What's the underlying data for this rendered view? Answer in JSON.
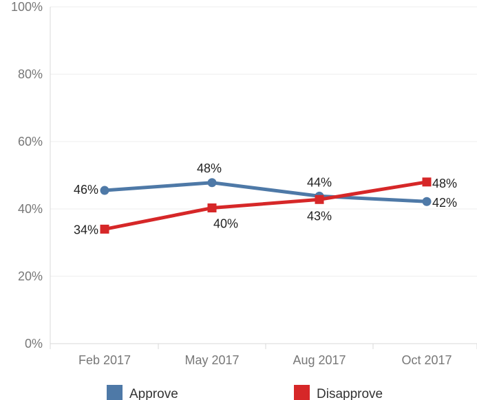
{
  "chart_data": {
    "type": "line",
    "categories": [
      "Feb 2017",
      "May 2017",
      "Aug 2017",
      "Oct 2017"
    ],
    "series": [
      {
        "name": "Approve",
        "values": [
          45.5,
          47.8,
          43.8,
          42.2
        ],
        "labels": [
          "46%",
          "48%",
          "44%",
          "42%"
        ],
        "color": "#4e79a7",
        "marker": "circle"
      },
      {
        "name": "Disapprove",
        "values": [
          34.0,
          40.3,
          42.8,
          48.0
        ],
        "labels": [
          "34%",
          "40%",
          "43%",
          "48%"
        ],
        "color": "#d62728",
        "marker": "square"
      }
    ],
    "ylim": [
      0,
      100
    ],
    "yticks": [
      {
        "value": 0,
        "label": "0%"
      },
      {
        "value": 20,
        "label": "20%"
      },
      {
        "value": 40,
        "label": "40%"
      },
      {
        "value": 60,
        "label": "60%"
      },
      {
        "value": 80,
        "label": "80%"
      },
      {
        "value": 100,
        "label": "100%"
      }
    ],
    "grid": true,
    "legend_position": "bottom"
  }
}
